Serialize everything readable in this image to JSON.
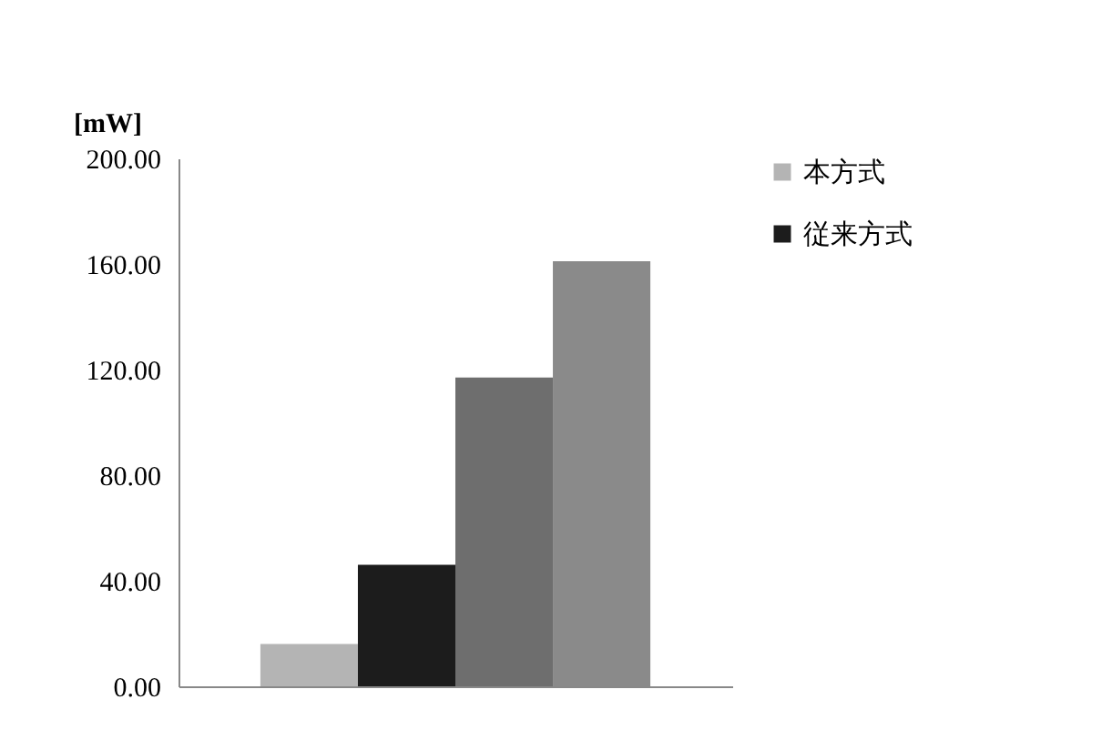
{
  "chart_data": {
    "type": "bar",
    "ylabel": "[mW]",
    "categories": [
      null
    ],
    "series": [
      {
        "name": "本方式",
        "color": "#b4b4b4",
        "values": [
          16
        ]
      },
      {
        "name": "従来方式",
        "color": "#1c1c1c",
        "values": [
          46
        ]
      },
      {
        "color": "#6e6e6e",
        "values": [
          117
        ]
      },
      {
        "color": "#8a8a8a",
        "values": [
          161
        ]
      }
    ],
    "ylim": [
      0,
      200
    ],
    "yticks": [
      {
        "value": 0,
        "label": "0.00"
      },
      {
        "value": 40,
        "label": "40.00"
      },
      {
        "value": 80,
        "label": "80.00"
      },
      {
        "value": 120,
        "label": "120.00"
      },
      {
        "value": 160,
        "label": "160.00"
      },
      {
        "value": 200,
        "label": "200.00"
      }
    ],
    "grid": false,
    "legend": "right",
    "tick_labels": "y"
  }
}
